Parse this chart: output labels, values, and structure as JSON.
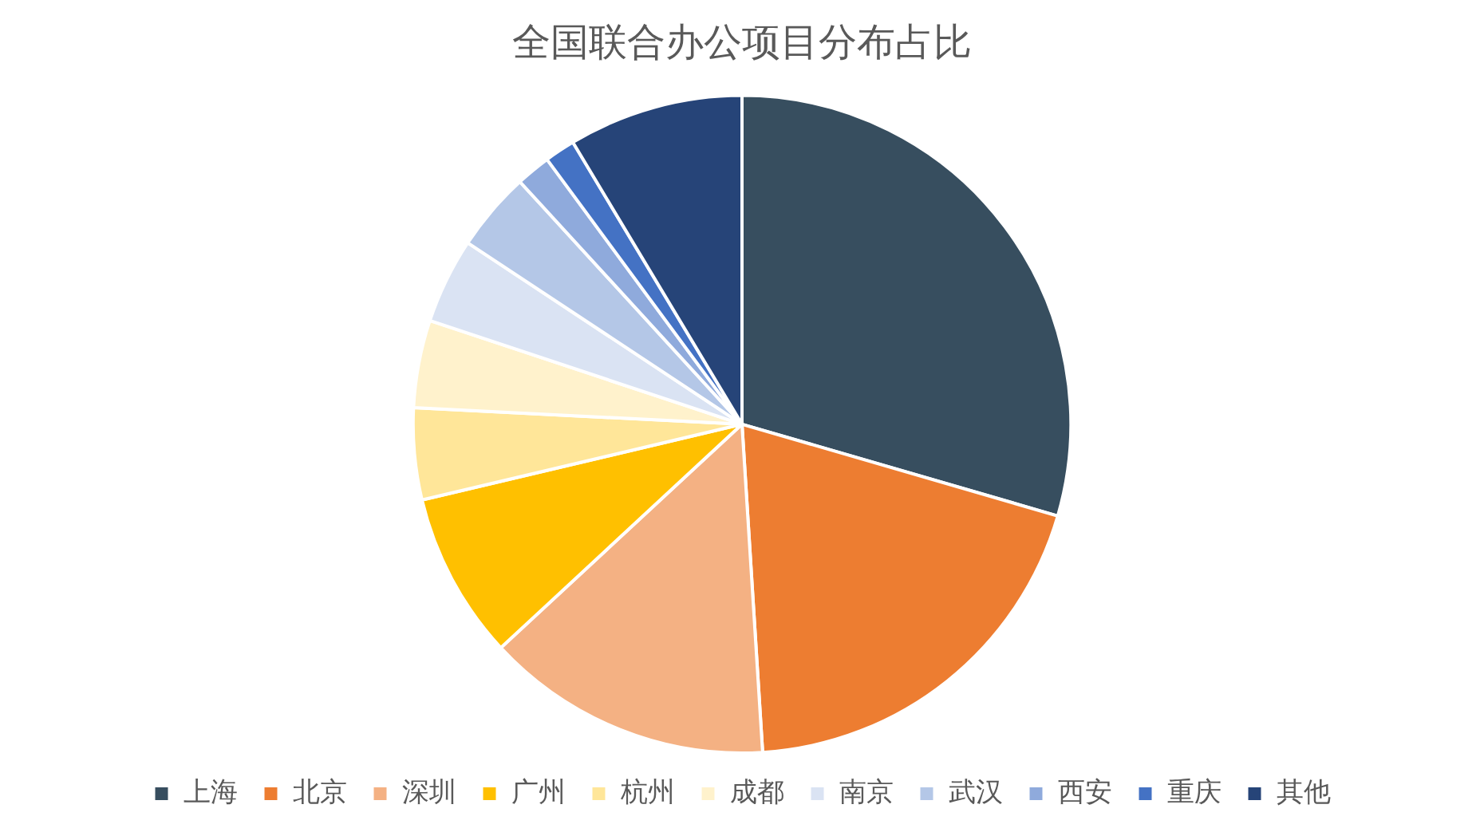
{
  "chart_data": {
    "type": "pie",
    "title": "全国联合办公项目分布占比",
    "categories": [
      "上海",
      "北京",
      "深圳",
      "广州",
      "杭州",
      "成都",
      "南京",
      "武汉",
      "西安",
      "重庆",
      "其他"
    ],
    "values": [
      29.5,
      19.5,
      14.1,
      8.2,
      4.5,
      4.3,
      4.2,
      3.9,
      1.7,
      1.5,
      8.6
    ],
    "colors": [
      "#374e5f",
      "#ed7d31",
      "#f4b183",
      "#ffc000",
      "#ffe699",
      "#fff2cc",
      "#dae3f3",
      "#b4c7e7",
      "#8faadc",
      "#4472c4",
      "#264478"
    ],
    "legend": "bottom"
  }
}
